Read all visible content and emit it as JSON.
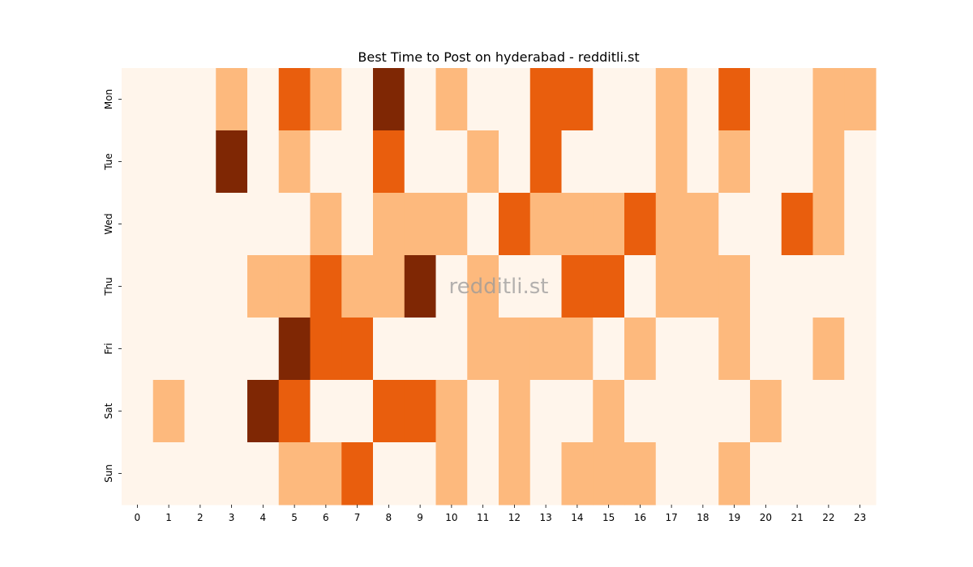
{
  "chart_data": {
    "type": "heatmap",
    "title": "Best Time to Post on hyderabad - redditli.st",
    "watermark": "redditli.st",
    "xlabel": "",
    "ylabel": "",
    "x_categories": [
      "0",
      "1",
      "2",
      "3",
      "4",
      "5",
      "6",
      "7",
      "8",
      "9",
      "10",
      "11",
      "12",
      "13",
      "14",
      "15",
      "16",
      "17",
      "18",
      "19",
      "20",
      "21",
      "22",
      "23"
    ],
    "y_categories": [
      "Mon",
      "Tue",
      "Wed",
      "Thu",
      "Fri",
      "Sat",
      "Sun"
    ],
    "colormap": "Oranges",
    "levels": {
      "0": "#fff5eb",
      "1": "#fdb97d",
      "2": "#e95e0d",
      "3": "#7f2704"
    },
    "values": [
      [
        0,
        0,
        0,
        1,
        0,
        2,
        1,
        0,
        3,
        0,
        1,
        0,
        0,
        2,
        2,
        0,
        0,
        1,
        0,
        2,
        0,
        0,
        1,
        1
      ],
      [
        0,
        0,
        0,
        3,
        0,
        1,
        0,
        0,
        2,
        0,
        0,
        1,
        0,
        2,
        0,
        0,
        0,
        1,
        0,
        1,
        0,
        0,
        1,
        0
      ],
      [
        0,
        0,
        0,
        0,
        0,
        0,
        1,
        0,
        1,
        1,
        1,
        0,
        2,
        1,
        1,
        1,
        2,
        1,
        1,
        0,
        0,
        2,
        1,
        0
      ],
      [
        0,
        0,
        0,
        0,
        1,
        1,
        2,
        1,
        1,
        3,
        0,
        1,
        0,
        0,
        2,
        2,
        0,
        1,
        1,
        1,
        0,
        0,
        0,
        0
      ],
      [
        0,
        0,
        0,
        0,
        0,
        3,
        2,
        2,
        0,
        0,
        0,
        1,
        1,
        1,
        1,
        0,
        1,
        0,
        0,
        1,
        0,
        0,
        1,
        0
      ],
      [
        0,
        1,
        0,
        0,
        3,
        2,
        0,
        0,
        2,
        2,
        1,
        0,
        1,
        0,
        0,
        1,
        0,
        0,
        0,
        0,
        1,
        0,
        0,
        0
      ],
      [
        0,
        0,
        0,
        0,
        0,
        1,
        1,
        2,
        0,
        0,
        1,
        0,
        1,
        0,
        1,
        1,
        1,
        0,
        0,
        1,
        0,
        0,
        0,
        0
      ]
    ],
    "grid": false,
    "colorbar": false
  }
}
